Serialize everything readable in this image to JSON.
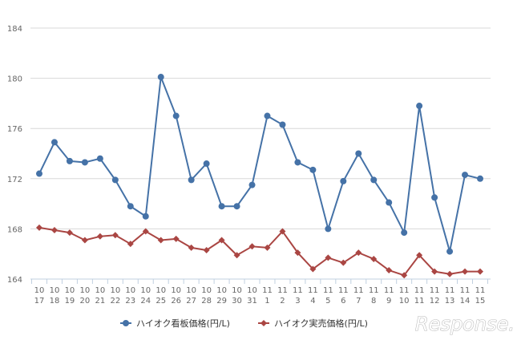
{
  "chart_data": {
    "type": "line",
    "categories": [
      "10\n17",
      "10\n18",
      "10\n19",
      "10\n20",
      "10\n21",
      "10\n22",
      "10\n23",
      "10\n24",
      "10\n25",
      "10\n26",
      "10\n27",
      "10\n28",
      "10\n29",
      "10\n30",
      "10\n31",
      "11\n1",
      "11\n2",
      "11\n3",
      "11\n4",
      "11\n5",
      "11\n6",
      "11\n7",
      "11\n8",
      "11\n9",
      "11\n10",
      "11\n11",
      "11\n12",
      "11\n13",
      "11\n14",
      "11\n15"
    ],
    "series": [
      {
        "name": "ハイオク看板価格(円/L)",
        "color": "#4572a7",
        "values": [
          172.4,
          174.9,
          173.4,
          173.3,
          173.6,
          171.9,
          169.8,
          169.0,
          180.1,
          177.0,
          171.9,
          173.2,
          169.8,
          169.8,
          171.5,
          177.0,
          176.3,
          173.3,
          172.7,
          168.0,
          171.8,
          174.0,
          171.9,
          170.1,
          167.7,
          177.8,
          170.5,
          166.2,
          172.3,
          172.0
        ]
      },
      {
        "name": "ハイオク実売価格(円/L)",
        "color": "#aa4643",
        "values": [
          168.1,
          167.9,
          167.7,
          167.1,
          167.4,
          167.5,
          166.8,
          167.8,
          167.1,
          167.2,
          166.5,
          166.3,
          167.1,
          165.9,
          166.6,
          166.5,
          167.8,
          166.1,
          164.8,
          165.7,
          165.3,
          166.1,
          165.6,
          164.7,
          164.3,
          165.9,
          164.6,
          164.4,
          164.6,
          164.6
        ]
      }
    ],
    "yticks": [
      164,
      168,
      172,
      176,
      180,
      184
    ],
    "ylim": [
      164,
      184
    ],
    "grid": true,
    "legend_position": "bottom-center"
  },
  "watermark": {
    "text": "Response."
  }
}
